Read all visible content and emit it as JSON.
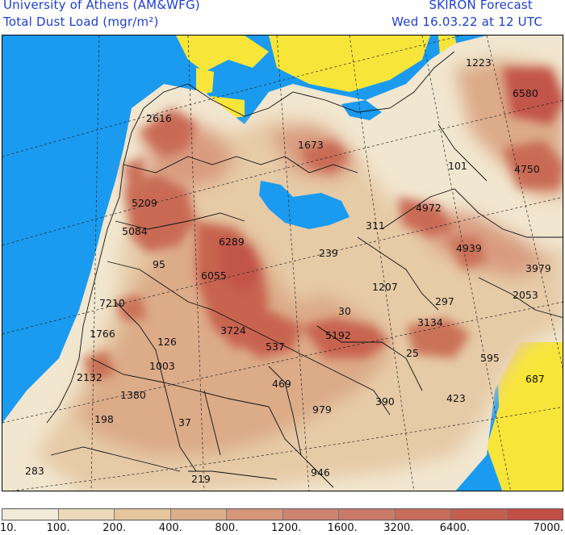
{
  "header": {
    "left_line1": "University of Athens (AM&WFG)",
    "left_line2": "Total Dust Load (mgr/m²)",
    "right_line1": "SKIRON Forecast",
    "right_line2": "Wed 16.03.22 at 12 UTC"
  },
  "colors": {
    "sea": "#1a9bf0",
    "land_no_dust": "#f8e53a",
    "dust_low": "#f1e6cf",
    "dust_mid": "#dca586",
    "dust_high": "#c65c4a"
  },
  "map_labels": [
    "1223",
    "6580",
    "2616",
    "1673",
    "101",
    "4750",
    "5209",
    "4972",
    "311",
    "5084",
    "6289",
    "4939",
    "3979",
    "239",
    "95",
    "6055",
    "1207",
    "2053",
    "7210",
    "297",
    "30",
    "3134",
    "1766",
    "3724",
    "5192",
    "126",
    "537",
    "25",
    "595",
    "1003",
    "687",
    "2132",
    "469",
    "1380",
    "979",
    "390",
    "423",
    "198",
    "37",
    "283",
    "946",
    "219"
  ],
  "legend": {
    "labels": [
      "10.",
      "100.",
      "200.",
      "400.",
      "800.",
      "1200.",
      "1600.",
      "3200.",
      "6400.",
      "7000."
    ],
    "colors": [
      "#f2ead9",
      "#ecd9b9",
      "#e5c59d",
      "#dcae8a",
      "#d5967a",
      "#cd8470",
      "#c97a68",
      "#c66c5a",
      "#c45f50",
      "#c24f45"
    ]
  }
}
